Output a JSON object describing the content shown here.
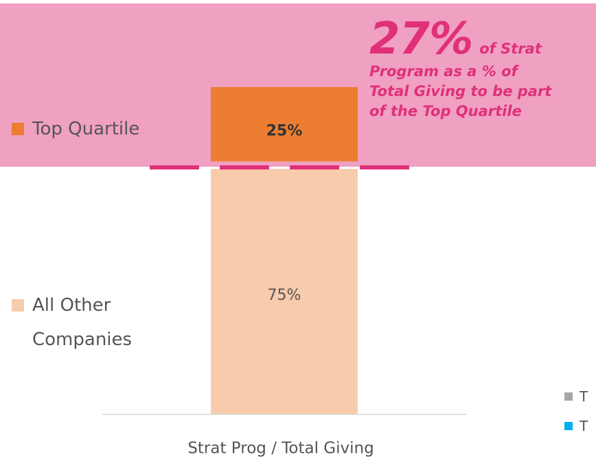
{
  "chart_data": {
    "type": "stacked_bar",
    "categories": [
      "Strat Prog / Total Giving"
    ],
    "series": [
      {
        "name": "All Other Companies",
        "color": "#f8cbad",
        "values": [
          75
        ],
        "value_labels": [
          "75%"
        ]
      },
      {
        "name": "Top Quartile",
        "color": "#ed7d31",
        "values": [
          25
        ],
        "value_labels": [
          "25%"
        ]
      }
    ],
    "ylim": [
      0,
      100
    ],
    "annotation": {
      "big": "27%",
      "lines": [
        "of Strat",
        "Program as a % of",
        "Total Giving to be part",
        "of the Top Quartile"
      ]
    },
    "legend_extra": [
      {
        "label": "T",
        "color": "#a6a6a6"
      },
      {
        "label": "T",
        "color": "#00b0f0"
      }
    ]
  }
}
